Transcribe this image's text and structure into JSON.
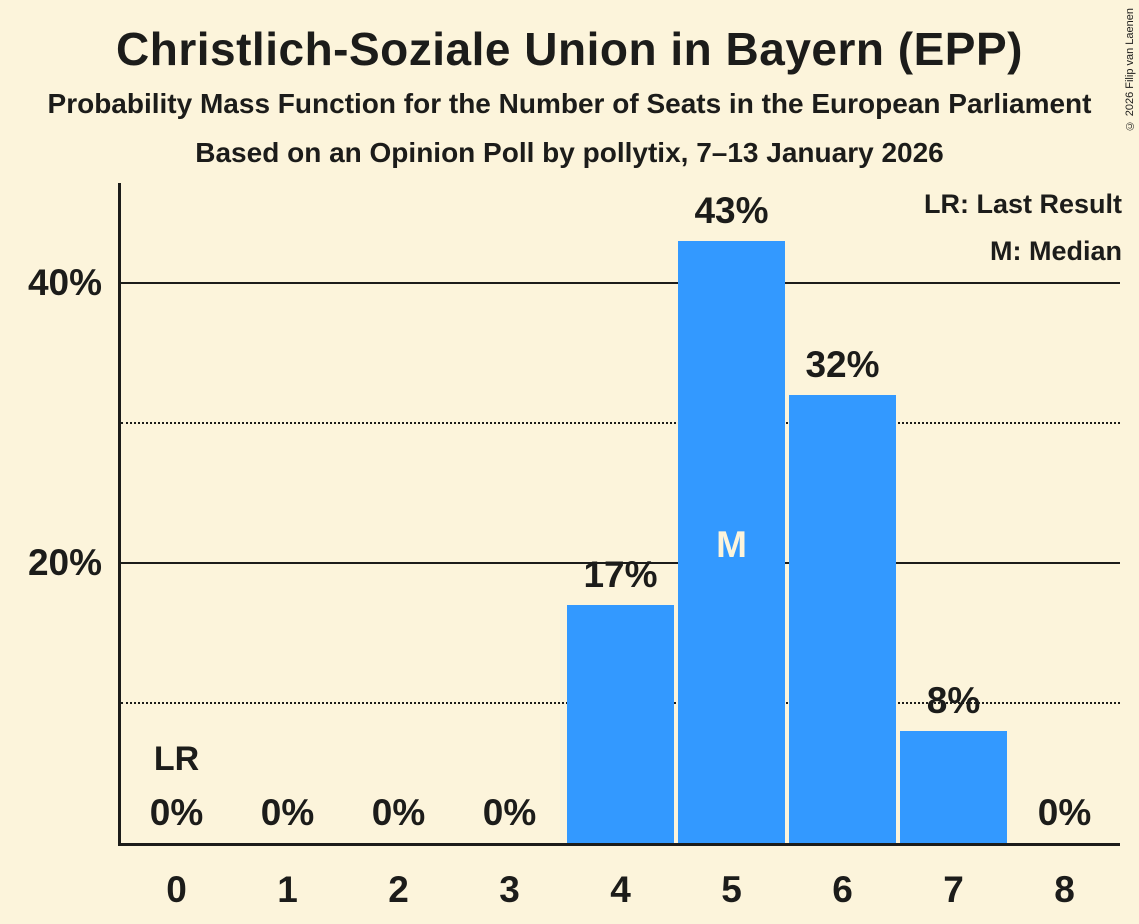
{
  "header": {
    "title": "Christlich-Soziale Union in Bayern (EPP)",
    "subtitle1": "Probability Mass Function for the Number of Seats in the European Parliament",
    "subtitle2": "Based on an Opinion Poll by pollytix, 7–13 January 2026",
    "copyright": "© 2026 Filip van Laenen"
  },
  "legend": {
    "items": [
      "LR: Last Result",
      "M: Median"
    ]
  },
  "chart_data": {
    "type": "bar",
    "title": "Christlich-Soziale Union in Bayern (EPP)",
    "subtitle": "Probability Mass Function for the Number of Seats in the European Parliament",
    "source_note": "Based on an Opinion Poll by pollytix, 7–13 January 2026",
    "categories": [
      "0",
      "1",
      "2",
      "3",
      "4",
      "5",
      "6",
      "7",
      "8"
    ],
    "values": [
      0,
      0,
      0,
      0,
      17,
      43,
      32,
      8,
      0
    ],
    "value_labels": [
      "0%",
      "0%",
      "0%",
      "0%",
      "17%",
      "43%",
      "32%",
      "8%",
      "0%"
    ],
    "ylim": [
      0,
      47
    ],
    "yticks": [
      {
        "value": 10,
        "label": "",
        "style": "dotted"
      },
      {
        "value": 20,
        "label": "20%",
        "style": "solid"
      },
      {
        "value": 30,
        "label": "",
        "style": "dotted"
      },
      {
        "value": 40,
        "label": "40%",
        "style": "solid"
      }
    ],
    "grid": "horizontal",
    "legend_position": "top-right",
    "annotations": {
      "median_index": 5,
      "median_label": "M",
      "last_result_index": 0,
      "last_result_label": "LR"
    },
    "colors": {
      "background": "#FCF4DB",
      "bar": "#3399FF",
      "text": "#1C1C1A",
      "median_text": "#FCF4DB",
      "axis": "#1C1C1A"
    }
  }
}
